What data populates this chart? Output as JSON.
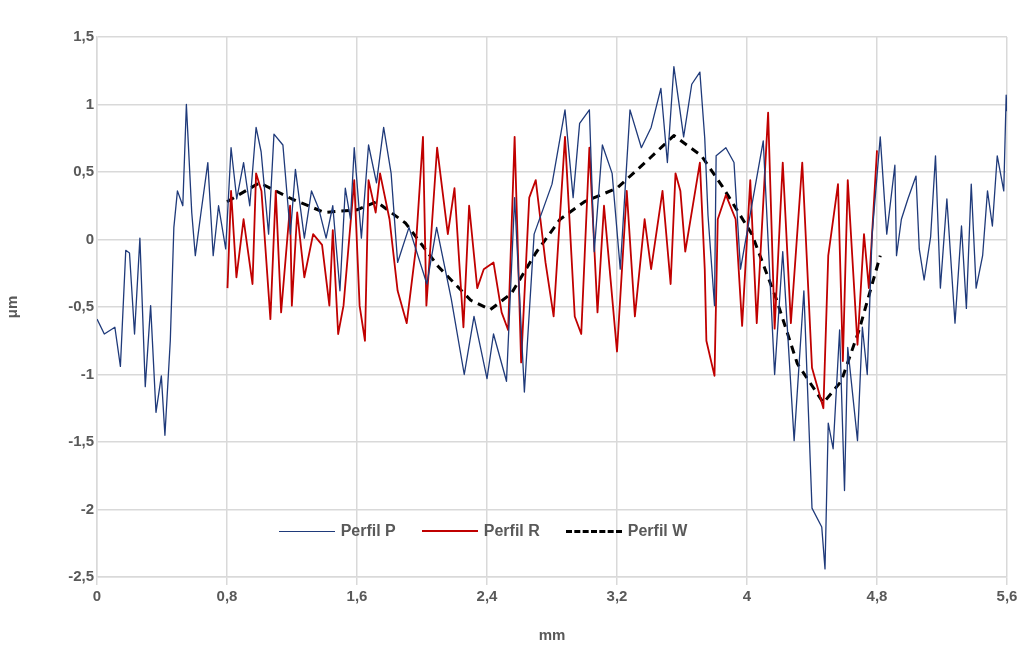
{
  "chart_data": {
    "type": "line",
    "xlabel": "mm",
    "ylabel": "μm",
    "marker": "none",
    "grid": true,
    "legend": "bottom",
    "xlim": [
      0,
      5.6
    ],
    "xticks": [
      0,
      {
        "value": 0.8,
        "label": "0,8"
      },
      {
        "value": 1.6,
        "label": "1,6"
      },
      {
        "value": 2.4,
        "label": "2,4"
      },
      {
        "value": 3.2,
        "label": "3,2"
      },
      4,
      {
        "value": 4.8,
        "label": "4,8"
      },
      {
        "value": 5.6,
        "label": "5,6"
      }
    ],
    "ylim": [
      -2.5,
      1.5
    ],
    "yticks": [
      {
        "value": -2.5,
        "label": "-2,5"
      },
      -2,
      {
        "value": -1.5,
        "label": "-1,5"
      },
      -1,
      {
        "value": -0.5,
        "label": "-0,5"
      },
      0,
      {
        "value": 0.5,
        "label": "0,5"
      },
      1,
      {
        "value": 1.5,
        "label": "1,5"
      }
    ],
    "series": [
      {
        "name": "Perfil P",
        "color": "#1f3a7a",
        "line_style": "solid",
        "x": [
          0,
          0.045,
          0.11,
          0.144,
          0.177,
          0.2,
          0.231,
          0.264,
          0.297,
          0.33,
          0.363,
          0.396,
          0.418,
          0.451,
          0.473,
          0.495,
          0.528,
          0.55,
          0.583,
          0.605,
          0.64,
          0.682,
          0.715,
          0.748,
          0.792,
          0.825,
          0.86,
          0.902,
          0.94,
          0.979,
          1.01,
          1.056,
          1.089,
          1.144,
          1.19,
          1.221,
          1.276,
          1.32,
          1.364,
          1.41,
          1.451,
          1.495,
          1.528,
          1.56,
          1.583,
          1.627,
          1.671,
          1.72,
          1.764,
          1.81,
          1.85,
          1.92,
          2.03,
          2.09,
          2.18,
          2.26,
          2.32,
          2.4,
          2.44,
          2.52,
          2.57,
          2.63,
          2.69,
          2.8,
          2.88,
          2.93,
          2.97,
          3.03,
          3.06,
          3.11,
          3.17,
          3.22,
          3.28,
          3.35,
          3.41,
          3.47,
          3.51,
          3.55,
          3.61,
          3.66,
          3.71,
          3.74,
          3.76,
          3.8,
          3.81,
          3.87,
          3.92,
          3.96,
          4.1,
          4.17,
          4.22,
          4.29,
          4.35,
          4.4,
          4.46,
          4.48,
          4.5,
          4.53,
          4.57,
          4.6,
          4.62,
          4.68,
          4.71,
          4.74,
          4.77,
          4.82,
          4.86,
          4.91,
          4.92,
          4.95,
          4.99,
          5.04,
          5.06,
          5.09,
          5.13,
          5.16,
          5.19,
          5.23,
          5.28,
          5.32,
          5.35,
          5.38,
          5.41,
          5.45,
          5.48,
          5.51,
          5.54,
          5.58,
          5.595,
          5.6
        ],
        "values": [
          -0.59,
          -0.7,
          -0.65,
          -0.94,
          -0.08,
          -0.1,
          -0.7,
          0.01,
          -1.09,
          -0.49,
          -1.28,
          -1.01,
          -1.45,
          -0.75,
          0.09,
          0.36,
          0.25,
          1.0,
          0.2,
          -0.12,
          0.2,
          0.57,
          -0.12,
          0.25,
          -0.07,
          0.68,
          0.3,
          0.57,
          0.25,
          0.83,
          0.65,
          0.04,
          0.78,
          0.7,
          0.04,
          0.52,
          0.01,
          0.36,
          0.23,
          0.01,
          0.25,
          -0.38,
          0.38,
          0.15,
          0.68,
          0.01,
          0.7,
          0.42,
          0.83,
          0.49,
          -0.17,
          0.09,
          -0.33,
          0.09,
          -0.44,
          -1.0,
          -0.57,
          -1.03,
          -0.7,
          -1.05,
          0.31,
          -1.13,
          0.04,
          0.41,
          0.96,
          0.31,
          0.86,
          0.96,
          -0.09,
          0.7,
          0.49,
          -0.22,
          0.96,
          0.68,
          0.83,
          1.12,
          0.57,
          1.28,
          0.76,
          1.15,
          1.24,
          0.75,
          0.18,
          -0.49,
          0.62,
          0.68,
          0.57,
          -0.22,
          0.73,
          -1.0,
          -0.09,
          -1.49,
          -0.38,
          -1.99,
          -2.13,
          -2.44,
          -1.36,
          -1.55,
          -0.67,
          -1.86,
          -0.8,
          -1.49,
          -0.65,
          -1.0,
          0.04,
          0.76,
          0.04,
          0.55,
          -0.12,
          0.15,
          0.3,
          0.47,
          -0.07,
          -0.3,
          0.02,
          0.62,
          -0.36,
          0.3,
          -0.62,
          0.1,
          -0.51,
          0.41,
          -0.36,
          -0.12,
          0.36,
          0.1,
          0.62,
          0.36,
          1.07,
          0.95
        ]
      },
      {
        "name": "Perfil R",
        "color": "#c00000",
        "line_style": "solid",
        "x": [
          0.803,
          0.825,
          0.858,
          0.902,
          0.957,
          0.979,
          1.012,
          1.067,
          1.1,
          1.133,
          1.188,
          1.199,
          1.232,
          1.276,
          1.33,
          1.385,
          1.43,
          1.451,
          1.484,
          1.517,
          1.583,
          1.616,
          1.649,
          1.671,
          1.715,
          1.742,
          1.8,
          1.85,
          1.906,
          1.96,
          2.006,
          2.027,
          2.093,
          2.159,
          2.2,
          2.255,
          2.29,
          2.34,
          2.38,
          2.44,
          2.49,
          2.53,
          2.57,
          2.61,
          2.66,
          2.7,
          2.76,
          2.81,
          2.88,
          2.94,
          2.98,
          3.03,
          3.08,
          3.12,
          3.2,
          3.26,
          3.31,
          3.37,
          3.41,
          3.48,
          3.53,
          3.56,
          3.59,
          3.62,
          3.71,
          3.74,
          3.75,
          3.8,
          3.82,
          3.87,
          3.93,
          3.97,
          4.02,
          4.06,
          4.13,
          4.17,
          4.22,
          4.27,
          4.34,
          4.4,
          4.47,
          4.5,
          4.56,
          4.59,
          4.62,
          4.68,
          4.72,
          4.75,
          4.8
        ],
        "values": [
          -0.36,
          0.36,
          -0.28,
          0.15,
          -0.33,
          0.49,
          0.36,
          -0.59,
          0.36,
          -0.54,
          0.25,
          -0.49,
          0.2,
          -0.28,
          0.04,
          -0.04,
          -0.49,
          0.07,
          -0.7,
          -0.49,
          0.44,
          -0.49,
          -0.75,
          0.44,
          0.2,
          0.49,
          0.15,
          -0.38,
          -0.62,
          -0.09,
          0.76,
          -0.49,
          0.68,
          0.04,
          0.38,
          -0.65,
          0.25,
          -0.36,
          -0.22,
          -0.17,
          -0.54,
          -0.67,
          0.76,
          -0.91,
          0.31,
          0.44,
          -0.17,
          -0.57,
          0.76,
          -0.57,
          -0.7,
          0.68,
          -0.54,
          0.25,
          -0.83,
          0.36,
          -0.57,
          0.15,
          -0.22,
          0.36,
          -0.33,
          0.49,
          0.36,
          -0.09,
          0.57,
          -0.22,
          -0.75,
          -1.01,
          0.15,
          0.33,
          0.15,
          -0.64,
          0.44,
          -0.62,
          0.94,
          -0.66,
          0.57,
          -0.62,
          0.57,
          -0.95,
          -1.25,
          -0.12,
          0.41,
          -0.9,
          0.44,
          -0.78,
          0.04,
          -0.36,
          0.66
        ]
      },
      {
        "name": "Perfil W",
        "color": "#000000",
        "line_style": "dashed",
        "x": [
          0.8,
          1.0,
          1.2,
          1.4,
          1.6,
          1.72,
          1.9,
          2.1,
          2.3,
          2.42,
          2.55,
          2.7,
          2.85,
          3.0,
          3.2,
          3.4,
          3.55,
          3.72,
          3.85,
          4.03,
          4.18,
          4.31,
          4.47,
          4.58,
          4.69,
          4.82
        ],
        "values": [
          0.28,
          0.42,
          0.3,
          0.2,
          0.22,
          0.28,
          0.12,
          -0.2,
          -0.45,
          -0.52,
          -0.4,
          -0.1,
          0.15,
          0.28,
          0.38,
          0.6,
          0.77,
          0.62,
          0.39,
          0.04,
          -0.44,
          -0.92,
          -1.21,
          -1.05,
          -0.67,
          -0.12
        ]
      }
    ]
  }
}
